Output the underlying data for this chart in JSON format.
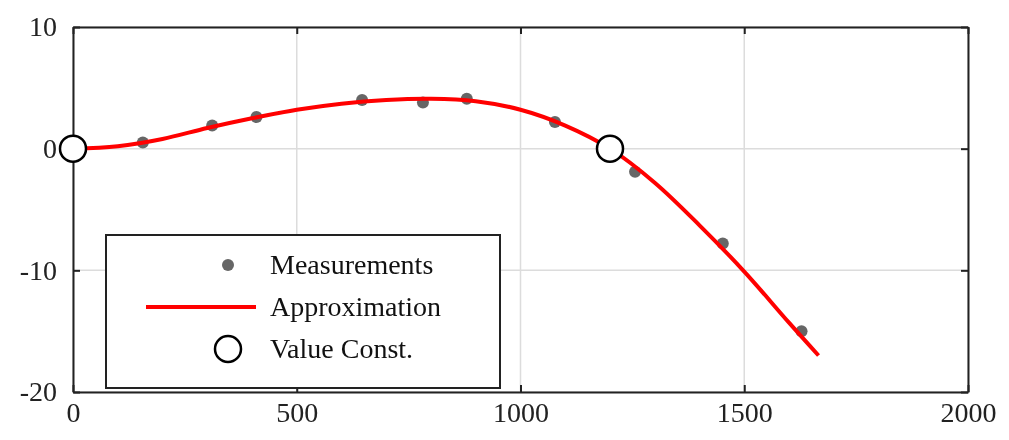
{
  "chart_data": {
    "type": "scatter",
    "xlim": [
      0,
      2000
    ],
    "ylim": [
      -20,
      10
    ],
    "xticks": [
      0,
      500,
      1000,
      1500,
      2000
    ],
    "yticks": [
      -20,
      -10,
      0,
      10
    ],
    "grid": true,
    "legend": "bottom left",
    "series": [
      {
        "name": "Measurements",
        "marker": "circle",
        "color": "#666666",
        "x": [
          156,
          311,
          410,
          646,
          782,
          880,
          1077,
          1256,
          1452,
          1628
        ],
        "values": [
          0.5,
          1.9,
          2.6,
          4.0,
          3.8,
          4.1,
          2.2,
          -1.9,
          -7.8,
          -15.0
        ]
      },
      {
        "name": "Approximation",
        "type": "line",
        "line_style": "solid",
        "color": "#ff0000",
        "x": [
          0,
          100,
          200,
          300,
          400,
          500,
          600,
          700,
          800,
          900,
          1000,
          1100,
          1200,
          1300,
          1400,
          1500,
          1600,
          1666
        ],
        "values": [
          0,
          0.2,
          0.8,
          1.7,
          2.5,
          3.2,
          3.7,
          4.0,
          4.1,
          3.9,
          3.2,
          1.9,
          0,
          -2.8,
          -6.3,
          -10.1,
          -14.3,
          -17.0
        ]
      },
      {
        "name": "Value Const.",
        "marker": "circle",
        "color": "#ffffff",
        "x": [
          0,
          1200
        ],
        "values": [
          0,
          0
        ]
      }
    ]
  }
}
